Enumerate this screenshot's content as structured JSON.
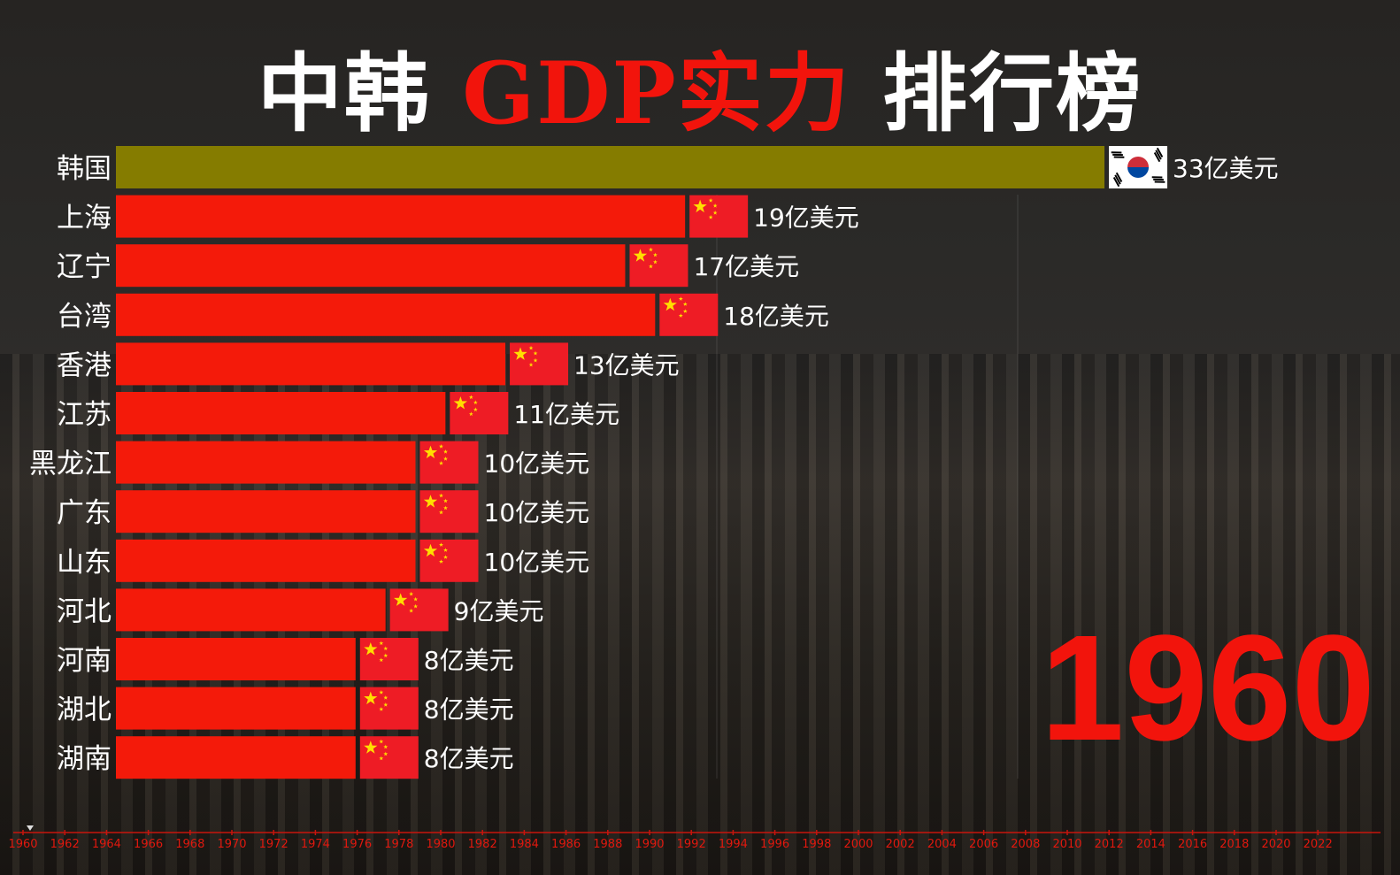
{
  "title": {
    "part1": "中韩 ",
    "part2": "GDP实力",
    "part3": " 排行榜"
  },
  "chart_data": {
    "type": "bar",
    "orientation": "horizontal",
    "title": "中韩 GDP实力 排行榜",
    "year": "1960",
    "unit": "亿美元",
    "categories": [
      "韩国",
      "上海",
      "辽宁",
      "台湾",
      "香港",
      "江苏",
      "黑龙江",
      "广东",
      "山东",
      "河北",
      "河南",
      "湖北",
      "湖南"
    ],
    "values": [
      33,
      19,
      17,
      18,
      13,
      11,
      10,
      10,
      10,
      9,
      8,
      8,
      8
    ],
    "value_labels": [
      "33亿美元",
      "19亿美元",
      "17亿美元",
      "18亿美元",
      "13亿美元",
      "11亿美元",
      "10亿美元",
      "10亿美元",
      "10亿美元",
      "9亿美元",
      "8亿美元",
      "8亿美元",
      "8亿美元"
    ],
    "flags": [
      "korea",
      "china",
      "china",
      "china",
      "china",
      "china",
      "china",
      "china",
      "china",
      "china",
      "china",
      "china",
      "china"
    ],
    "colors": [
      "#857c00",
      "#f41a0a",
      "#f41a0a",
      "#f41a0a",
      "#f41a0a",
      "#f41a0a",
      "#f41a0a",
      "#f41a0a",
      "#f41a0a",
      "#f41a0a",
      "#f41a0a",
      "#f41a0a",
      "#f41a0a"
    ],
    "timeline": {
      "start": 1960,
      "end": 2022,
      "step": 2,
      "current": 1960,
      "labels": [
        "1960",
        "1962",
        "1964",
        "1966",
        "1968",
        "1970",
        "1972",
        "1974",
        "1976",
        "1978",
        "1980",
        "1982",
        "1984",
        "1986",
        "1988",
        "1990",
        "1992",
        "1994",
        "1996",
        "1998",
        "2000",
        "2002",
        "2004",
        "2006",
        "2008",
        "2010",
        "2012",
        "2014",
        "2016",
        "2018",
        "2020",
        "2022"
      ]
    },
    "accent": "#f2140c"
  }
}
